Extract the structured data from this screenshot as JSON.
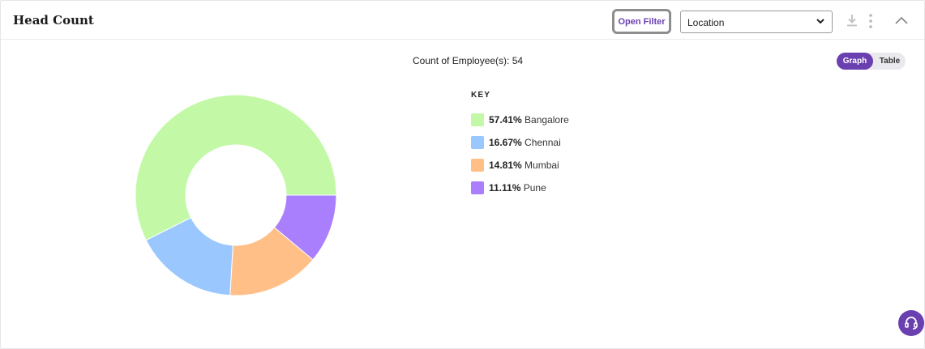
{
  "widget": {
    "title": "Head Count",
    "open_filter_label": "Open Filter",
    "select": {
      "value": "Location"
    },
    "icons": [
      "download-icon",
      "kebab-menu-icon",
      "chevron-up-icon",
      "chevron-down-icon",
      "headset-icon"
    ]
  },
  "summary": {
    "count_text": "Count of Employee(s): 54"
  },
  "view_toggle": {
    "graph_label": "Graph",
    "table_label": "Table",
    "active": "Graph"
  },
  "legend": {
    "title": "KEY"
  },
  "colors": {
    "accent": "#6a3fb0"
  },
  "chart_data": {
    "type": "pie",
    "variant": "donut",
    "total": 54,
    "slices": [
      {
        "label": "Bangalore",
        "percent_text": "57.41%",
        "value": 57.41,
        "color": "#c3f9a6"
      },
      {
        "label": "Chennai",
        "percent_text": "16.67%",
        "value": 16.67,
        "color": "#99c7fe"
      },
      {
        "label": "Mumbai",
        "percent_text": "14.81%",
        "value": 14.81,
        "color": "#ffbf86"
      },
      {
        "label": "Pune",
        "percent_text": "11.11%",
        "value": 11.11,
        "color": "#a97ffd"
      }
    ],
    "legend_position": "right"
  }
}
